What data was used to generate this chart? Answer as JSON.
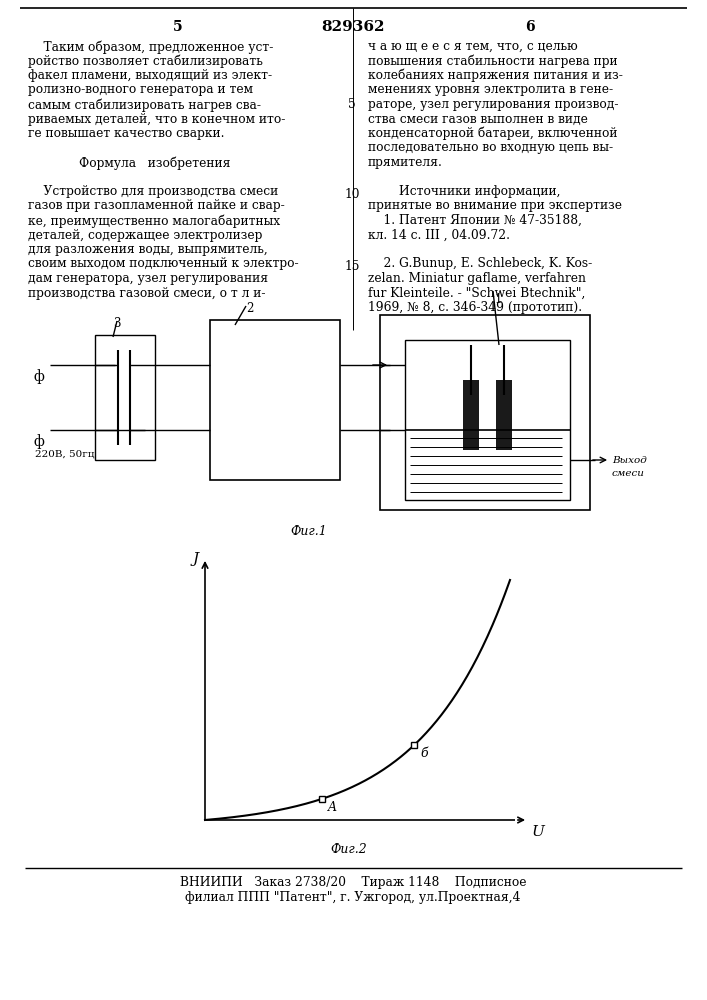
{
  "title": "829362",
  "page_left": "5",
  "page_right": "6",
  "bg_color": "#ffffff",
  "left_col_lines": [
    "    Таким образом, предложенное уст-",
    "ройство позволяет стабилизировать",
    "факел пламени, выходящий из элект-",
    "ролизно-водного генератора и тем",
    "самым стабилизировать нагрев сва-",
    "риваемых деталей, что в конечном ито-",
    "ге повышает качество сварки.",
    "",
    "        Формула   изобретения",
    "",
    "    Устройство для производства смеси",
    "газов при газопламенной пайке и свар-",
    "ке, преимущественно малогабаритных",
    "деталей, содержащее электролизер",
    "для разложения воды, выпрямитель,",
    "своим выходом подключенный к электро-",
    "дам генератора, узел регулирования",
    "производства газовой смеси, о т л и-"
  ],
  "right_col_lines": [
    "ч а ю щ е е с я тем, что, с целью",
    "повышения стабильности нагрева при",
    "колебаниях напряжения питания и из-",
    "менениях уровня электролита в гене-",
    "раторе, узел регулирования производ-",
    "ства смеси газов выполнен в виде",
    "конденсаторной батареи, включенной",
    "последовательно во входную цепь вы-",
    "прямителя.",
    "",
    "        Источники информации,",
    "принятые во внимание при экспертизе",
    "    1. Патент Японии № 47-35188,",
    "кл. 14 с. III , 04.09.72.",
    "",
    "    2. G.Bunuр, E. Schlebeck, K. Kos-",
    "zelan. Miniatur gaflame, verfahren",
    "fur Kleinteile. - \"Schwei Btechnik\",",
    "1969, № 8, с. 346-349 (прототип)."
  ],
  "line_num_5_row": 4,
  "line_num_10_row": 11,
  "line_num_15_row": 16,
  "fig1_label": "Фиг.1",
  "fig2_label": "Фиг.2",
  "bottom_text1": "ВНИИПИ   Заказ 2738/20    Тираж 1148    Подписное",
  "bottom_text2": "филиал ППП \"Патент\", г. Ужгород, ул.Проектная,4",
  "label_220": "220В, 50гц",
  "label_vyhod": "Выход",
  "label_smesi": "смеси",
  "label_1": "1",
  "label_2": "2",
  "label_3": "3",
  "label_A": "A",
  "label_B": "б",
  "label_J": "J",
  "label_U": "U",
  "phi": "ф"
}
